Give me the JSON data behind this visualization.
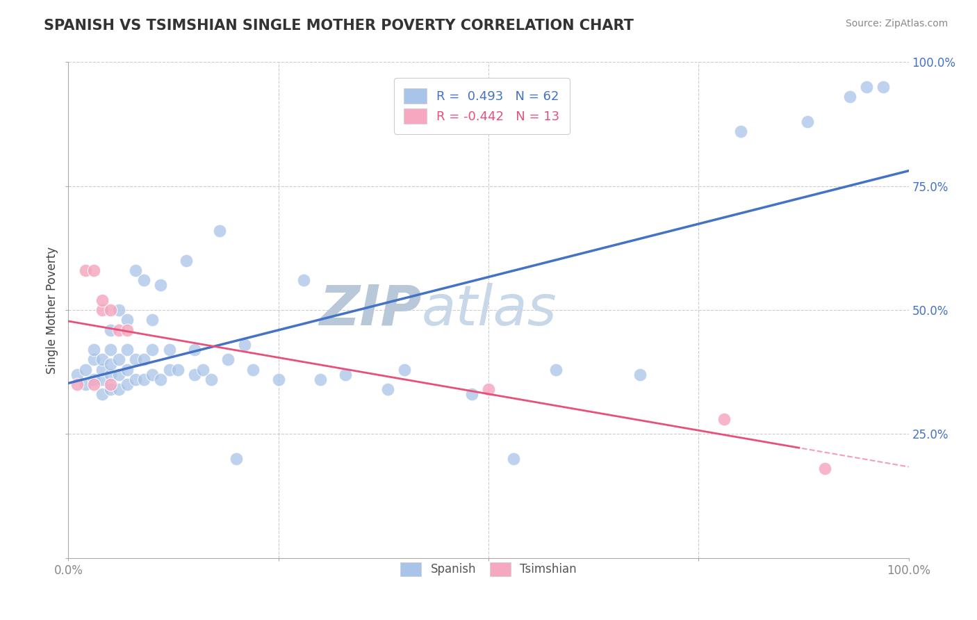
{
  "title": "SPANISH VS TSIMSHIAN SINGLE MOTHER POVERTY CORRELATION CHART",
  "source": "Source: ZipAtlas.com",
  "ylabel": "Single Mother Poverty",
  "r_spanish": 0.493,
  "n_spanish": 62,
  "r_tsimshian": -0.442,
  "n_tsimshian": 13,
  "xlim": [
    0.0,
    1.0
  ],
  "ylim": [
    0.0,
    1.0
  ],
  "spanish_color": "#a8c4e8",
  "tsimshian_color": "#f5a8c0",
  "spanish_line_color": "#4472c4",
  "tsimshian_line_color": "#e8507a",
  "tsimshian_line_color_dash": "#f0a0b8",
  "grid_color": "#cccccc",
  "watermark_color": "#ccd8e8",
  "background_color": "#ffffff",
  "tick_color_y": "#4472c4",
  "tick_color_x": "#888888",
  "spanish_x": [
    0.01,
    0.02,
    0.02,
    0.03,
    0.03,
    0.03,
    0.04,
    0.04,
    0.04,
    0.04,
    0.05,
    0.05,
    0.05,
    0.05,
    0.05,
    0.06,
    0.06,
    0.06,
    0.06,
    0.07,
    0.07,
    0.07,
    0.07,
    0.08,
    0.08,
    0.08,
    0.09,
    0.09,
    0.09,
    0.1,
    0.1,
    0.1,
    0.11,
    0.11,
    0.12,
    0.12,
    0.13,
    0.14,
    0.15,
    0.15,
    0.16,
    0.17,
    0.18,
    0.19,
    0.2,
    0.21,
    0.22,
    0.25,
    0.28,
    0.3,
    0.33,
    0.38,
    0.4,
    0.48,
    0.53,
    0.58,
    0.68,
    0.8,
    0.88,
    0.93,
    0.95,
    0.97
  ],
  "spanish_y": [
    0.37,
    0.35,
    0.38,
    0.36,
    0.4,
    0.42,
    0.33,
    0.36,
    0.38,
    0.4,
    0.34,
    0.37,
    0.39,
    0.42,
    0.46,
    0.34,
    0.37,
    0.4,
    0.5,
    0.35,
    0.38,
    0.42,
    0.48,
    0.36,
    0.4,
    0.58,
    0.36,
    0.4,
    0.56,
    0.37,
    0.42,
    0.48,
    0.36,
    0.55,
    0.38,
    0.42,
    0.38,
    0.6,
    0.37,
    0.42,
    0.38,
    0.36,
    0.66,
    0.4,
    0.2,
    0.43,
    0.38,
    0.36,
    0.56,
    0.36,
    0.37,
    0.34,
    0.38,
    0.33,
    0.2,
    0.38,
    0.37,
    0.86,
    0.88,
    0.93,
    0.95,
    0.95
  ],
  "tsimshian_x": [
    0.01,
    0.02,
    0.03,
    0.03,
    0.04,
    0.04,
    0.05,
    0.05,
    0.06,
    0.07,
    0.5,
    0.78,
    0.9
  ],
  "tsimshian_y": [
    0.35,
    0.58,
    0.58,
    0.35,
    0.5,
    0.52,
    0.5,
    0.35,
    0.46,
    0.46,
    0.34,
    0.28,
    0.18
  ]
}
